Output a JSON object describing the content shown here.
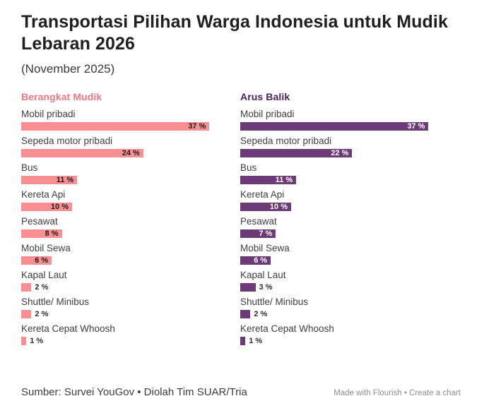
{
  "header": {
    "title": "Transportasi Pilihan Warga Indonesia untuk Mudik Lebaran 2026",
    "subtitle": "(November 2025)"
  },
  "chart_data": {
    "type": "bar",
    "orientation": "horizontal",
    "layout": "two small-multiple columns, one bar per category, value labels at bar ends, no axes or gridlines",
    "title": "Transportasi Pilihan Warga Indonesia untuk Mudik Lebaran 2026",
    "subtitle": "(November 2025)",
    "categories": [
      "Mobil pribadi",
      "Sepeda motor pribadi",
      "Bus",
      "Kereta Api",
      "Pesawat",
      "Mobil Sewa",
      "Kapal Laut",
      "Shuttle/ Minibus",
      "Kereta Cepat Whoosh"
    ],
    "series": [
      {
        "name": "Berangkat Mudik",
        "header_color": "#f8757f",
        "bar_color": "#fa8f93",
        "inside_label_color": "#1a1a1a",
        "values": [
          37,
          24,
          11,
          10,
          8,
          6,
          2,
          2,
          1
        ]
      },
      {
        "name": "Arus Balik",
        "header_color": "#4d2160",
        "bar_color": "#6c3b77",
        "inside_label_color": "#ffffff",
        "values": [
          37,
          22,
          11,
          10,
          7,
          6,
          3,
          2,
          1
        ]
      }
    ],
    "value_suffix": "%",
    "xmax": 37,
    "inside_label_min": 6,
    "grid": false,
    "legend_position": "column headers"
  },
  "footer": {
    "source": "Sumber: Survei YouGov • Diolah Tim SUAR/Tria",
    "credit_made": "Made with Flourish",
    "credit_separator": " • ",
    "credit_create": "Create a chart"
  }
}
